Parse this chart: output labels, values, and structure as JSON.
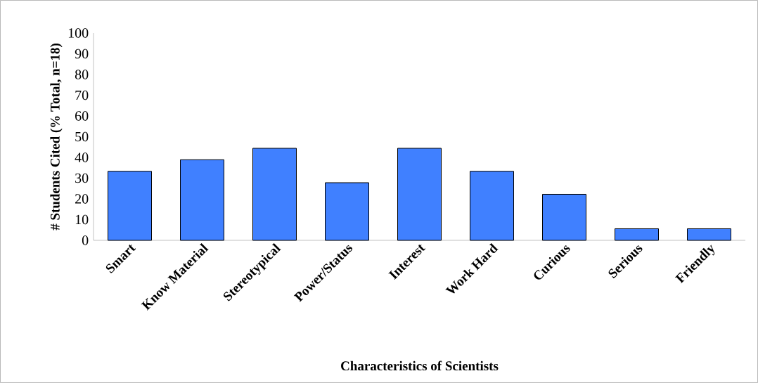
{
  "chart_data": {
    "type": "bar",
    "xlabel": "Characteristics of Scientists",
    "ylabel": "# Students Cited (% Total, n=18)",
    "categories": [
      "Smart",
      "Know Material",
      "Stereotypical",
      "Power/Status",
      "Interest",
      "Work Hard",
      "Curious",
      "Serious",
      "Friendly"
    ],
    "values": [
      33.3,
      38.9,
      44.4,
      27.8,
      44.4,
      33.3,
      22.2,
      5.6,
      5.6
    ],
    "color": "#4080ff",
    "ylim": [
      0,
      100
    ],
    "yticks": [
      0,
      10,
      20,
      30,
      40,
      50,
      60,
      70,
      80,
      90,
      100
    ]
  }
}
